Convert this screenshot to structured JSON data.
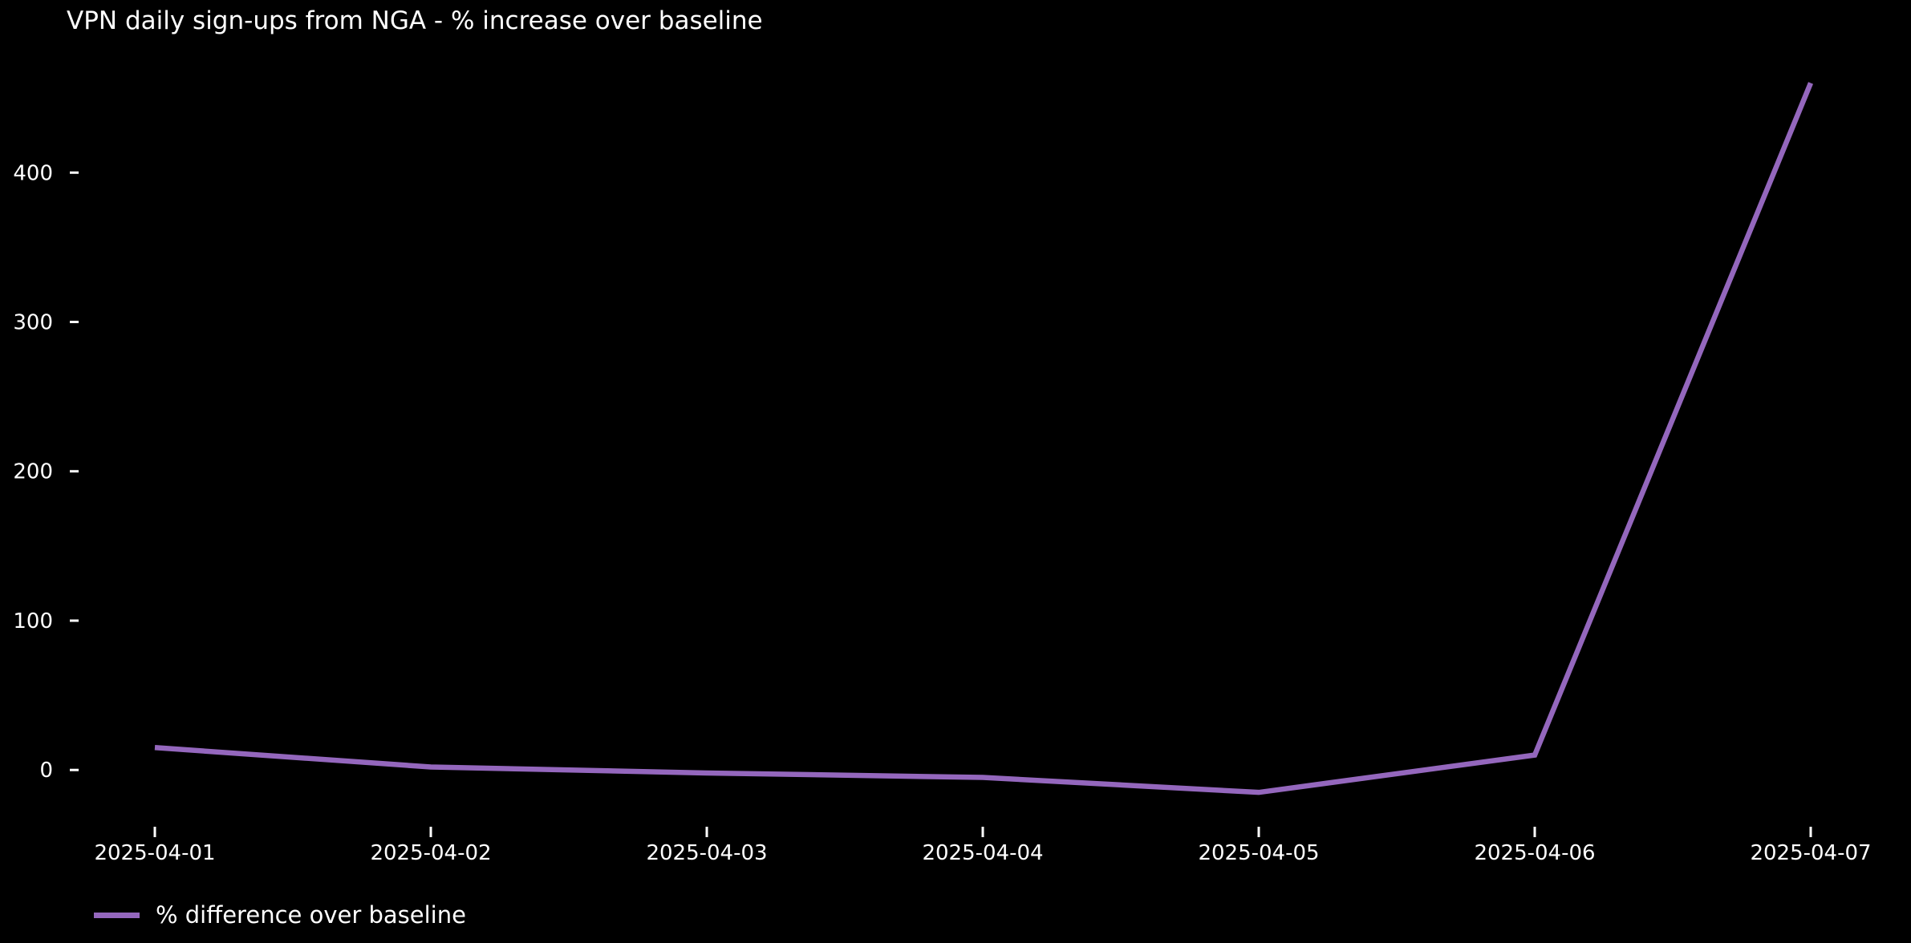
{
  "title": "VPN daily sign-ups from NGA - % increase over baseline",
  "legend": {
    "label": "% difference over baseline",
    "swatch_color": "#9467bd"
  },
  "colors": {
    "background": "#000000",
    "text": "#ffffff",
    "line": "#9467bd"
  },
  "chart_data": {
    "type": "line",
    "title": "VPN daily sign-ups from NGA - % increase over baseline",
    "x": [
      "2025-04-01",
      "2025-04-02",
      "2025-04-03",
      "2025-04-04",
      "2025-04-05",
      "2025-04-06",
      "2025-04-07"
    ],
    "series": [
      {
        "name": "% difference over baseline",
        "color": "#9467bd",
        "values": [
          15,
          2,
          -2,
          -5,
          -15,
          10,
          460
        ]
      }
    ],
    "xlabel": "",
    "ylabel": "",
    "yticks": [
      0,
      100,
      200,
      300,
      400
    ],
    "ylim": [
      -38,
      478
    ],
    "grid": false,
    "legend_position": "lower-left",
    "background": "#000000",
    "text_color": "#ffffff"
  }
}
